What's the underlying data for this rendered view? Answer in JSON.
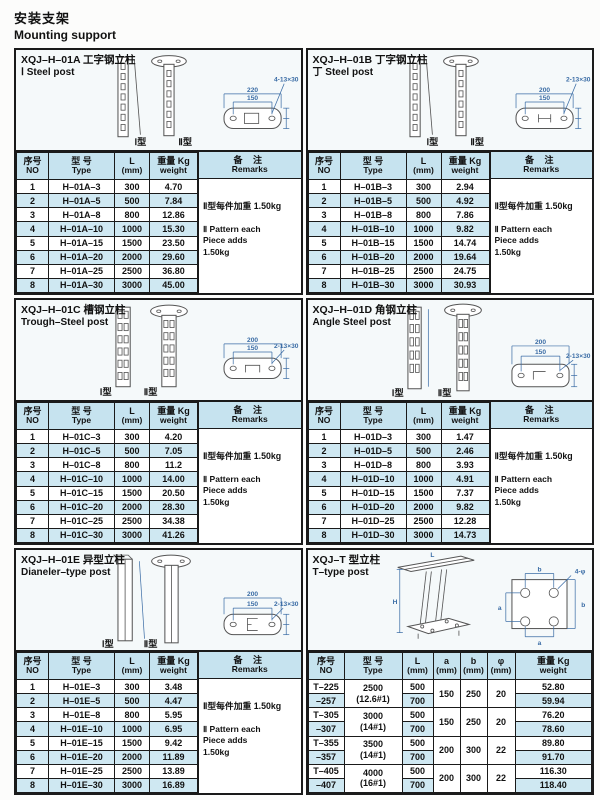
{
  "page": {
    "title_zh": "安装支架",
    "title_en": "Mounting support"
  },
  "std_headers": {
    "no_zh": "序号",
    "no_en": "NO",
    "type_zh": "型 号",
    "type_en": "Type",
    "l_zh": "L",
    "l_en": "(mm)",
    "w_zh": "重量 Kg",
    "w_en": "weight",
    "rem_zh": "备 注",
    "rem_en": "Remarks"
  },
  "panels": [
    {
      "title_zh": "XQJ–H–01A 工字钢立柱",
      "title_en": "Ⅰ Steel post",
      "label_i": "Ⅰ型",
      "label_ii": "Ⅱ型",
      "dims": {
        "holes": "4-13×30",
        "inner": "150",
        "outer": "220"
      },
      "rows": [
        [
          "1",
          "H–01A–3",
          "300",
          "4.70"
        ],
        [
          "2",
          "H–01A–5",
          "500",
          "7.84"
        ],
        [
          "3",
          "H–01A–8",
          "800",
          "12.86"
        ],
        [
          "4",
          "H–01A–10",
          "1000",
          "15.30"
        ],
        [
          "5",
          "H–01A–15",
          "1500",
          "23.50"
        ],
        [
          "6",
          "H–01A–20",
          "2000",
          "29.60"
        ],
        [
          "7",
          "H–01A–25",
          "2500",
          "36.80"
        ],
        [
          "8",
          "H–01A–30",
          "3000",
          "45.00"
        ]
      ],
      "remark_zh": "Ⅱ型每件加重 1.50kg",
      "remark_en": "Ⅱ Pattern each\nPiece adds\n1.50kg"
    },
    {
      "title_zh": "XQJ–H–01B 丁字钢立柱",
      "title_en": "丁 Steel post",
      "label_i": "Ⅰ型",
      "label_ii": "Ⅱ型",
      "dims": {
        "holes": "2-13×30",
        "inner": "150",
        "outer": "200"
      },
      "rows": [
        [
          "1",
          "H–01B–3",
          "300",
          "2.94"
        ],
        [
          "2",
          "H–01B–5",
          "500",
          "4.92"
        ],
        [
          "3",
          "H–01B–8",
          "800",
          "7.86"
        ],
        [
          "4",
          "H–01B–10",
          "1000",
          "9.82"
        ],
        [
          "5",
          "H–01B–15",
          "1500",
          "14.74"
        ],
        [
          "6",
          "H–01B–20",
          "2000",
          "19.64"
        ],
        [
          "7",
          "H–01B–25",
          "2500",
          "24.75"
        ],
        [
          "8",
          "H–01B–30",
          "3000",
          "30.93"
        ]
      ],
      "remark_zh": "Ⅱ型每件加重 1.50kg",
      "remark_en": "Ⅱ Pattern each\nPiece adds\n1.50kg"
    },
    {
      "title_zh": "XQJ–H–01C 槽钢立柱",
      "title_en": "Trough–Steel post",
      "label_i": "Ⅰ型",
      "label_ii": "Ⅱ型",
      "dims": {
        "holes": "2-13×30",
        "inner": "150",
        "outer": "200"
      },
      "rows": [
        [
          "1",
          "H–01C–3",
          "300",
          "4.20"
        ],
        [
          "2",
          "H–01C–5",
          "500",
          "7.05"
        ],
        [
          "3",
          "H–01C–8",
          "800",
          "11.2"
        ],
        [
          "4",
          "H–01C–10",
          "1000",
          "14.00"
        ],
        [
          "5",
          "H–01C–15",
          "1500",
          "20.50"
        ],
        [
          "6",
          "H–01C–20",
          "2000",
          "28.30"
        ],
        [
          "7",
          "H–01C–25",
          "2500",
          "34.38"
        ],
        [
          "8",
          "H–01C–30",
          "3000",
          "41.26"
        ]
      ],
      "remark_zh": "Ⅱ型每件加重 1.50kg",
      "remark_en": "Ⅱ Pattern each\nPiece adds\n1.50kg"
    },
    {
      "title_zh": "XQJ–H–01D 角钢立柱",
      "title_en": "Angle Steel post",
      "label_i": "Ⅰ型",
      "label_ii": "Ⅱ型",
      "dims": {
        "holes": "2-13×30",
        "inner": "150",
        "outer": "200"
      },
      "rows": [
        [
          "1",
          "H–01D–3",
          "300",
          "1.47"
        ],
        [
          "2",
          "H–01D–5",
          "500",
          "2.46"
        ],
        [
          "3",
          "H–01D–8",
          "800",
          "3.93"
        ],
        [
          "4",
          "H–01D–10",
          "1000",
          "4.91"
        ],
        [
          "5",
          "H–01D–15",
          "1500",
          "7.37"
        ],
        [
          "6",
          "H–01D–20",
          "2000",
          "9.82"
        ],
        [
          "7",
          "H–01D–25",
          "2500",
          "12.28"
        ],
        [
          "8",
          "H–01D–30",
          "3000",
          "14.73"
        ]
      ],
      "remark_zh": "Ⅱ型每件加重 1.50kg",
      "remark_en": "Ⅱ Pattern each\nPiece adds\n1.50kg"
    },
    {
      "title_zh": "XQJ–H–01E 异型立柱",
      "title_en": "Dianeler–type post",
      "label_i": "Ⅰ型",
      "label_ii": "Ⅱ型",
      "dims": {
        "holes": "2-13×30",
        "inner": "150",
        "outer": "200"
      },
      "rows": [
        [
          "1",
          "H–01E–3",
          "300",
          "3.48"
        ],
        [
          "2",
          "H–01E–5",
          "500",
          "4.47"
        ],
        [
          "3",
          "H–01E–8",
          "800",
          "5.95"
        ],
        [
          "4",
          "H–01E–10",
          "1000",
          "6.95"
        ],
        [
          "5",
          "H–01E–15",
          "1500",
          "9.42"
        ],
        [
          "6",
          "H–01E–20",
          "2000",
          "11.89"
        ],
        [
          "7",
          "H–01E–25",
          "2500",
          "13.89"
        ],
        [
          "8",
          "H–01E–30",
          "3000",
          "16.89"
        ]
      ],
      "remark_zh": "Ⅱ型每件加重 1.50kg",
      "remark_en": "Ⅱ Pattern each\nPiece adds\n1.50kg"
    }
  ],
  "tpanel": {
    "title_zh": "XQJ–T 型立柱",
    "title_en": "T–type post",
    "headers": {
      "no_zh": "序号",
      "no_en": "NO",
      "type_zh": "型 号",
      "type_en": "Type",
      "l_zh": "L",
      "a_zh": "a",
      "b_zh": "b",
      "phi_zh": "φ",
      "mm": "(mm)",
      "w_zh": "重量 Kg",
      "w_en": "weight"
    },
    "diagram": {
      "dim_H": "H",
      "dim_L": "L",
      "dim_a": "a",
      "dim_b": "b",
      "holes": "4-φ"
    },
    "groups": [
      {
        "no1": "T–225",
        "no2": "–257",
        "type": "2500",
        "spec": "(12.6#1)",
        "l1": "500",
        "l2": "700",
        "a": "150",
        "b": "250",
        "phi": "20",
        "w1": "52.80",
        "w2": "59.94"
      },
      {
        "no1": "T–305",
        "no2": "–307",
        "type": "3000",
        "spec": "(14#1)",
        "l1": "500",
        "l2": "700",
        "a": "150",
        "b": "250",
        "phi": "20",
        "w1": "76.20",
        "w2": "78.60"
      },
      {
        "no1": "T–355",
        "no2": "–357",
        "type": "3500",
        "spec": "(14#1)",
        "l1": "500",
        "l2": "700",
        "a": "200",
        "b": "300",
        "phi": "22",
        "w1": "89.80",
        "w2": "91.70"
      },
      {
        "no1": "T–405",
        "no2": "–407",
        "type": "4000",
        "spec": "(16#1)",
        "l1": "500",
        "l2": "700",
        "a": "200",
        "b": "300",
        "phi": "22",
        "w1": "116.30",
        "w2": "118.40"
      }
    ]
  }
}
